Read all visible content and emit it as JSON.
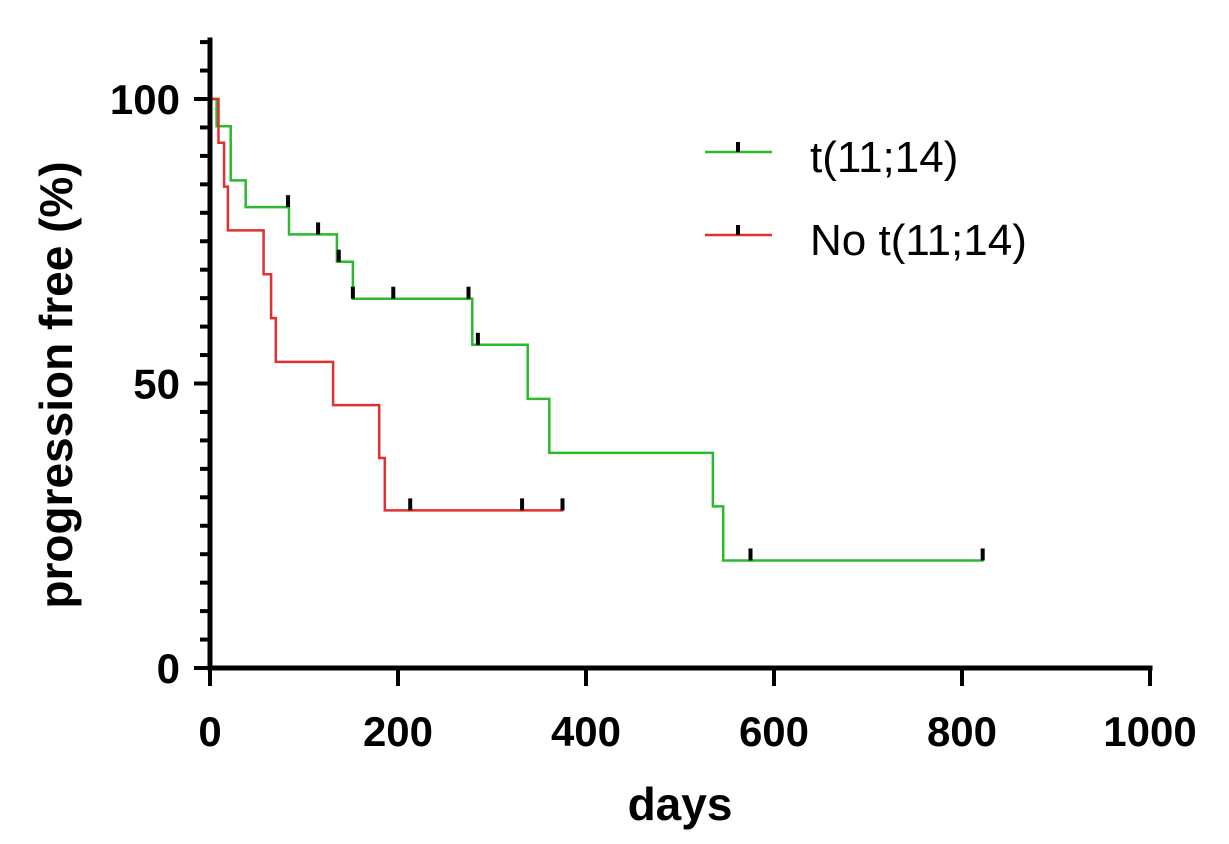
{
  "chart_data": {
    "type": "line",
    "subtype": "kaplan-meier step",
    "title": "",
    "xlabel": "days",
    "ylabel": "progression free (%)",
    "xlim": [
      0,
      1000
    ],
    "ylim": [
      0,
      110
    ],
    "x_ticks": [
      0,
      200,
      400,
      600,
      800,
      1000
    ],
    "x_tick_labels": [
      "0",
      "200",
      "400",
      "600",
      "800",
      "1000"
    ],
    "y_ticks": [
      0,
      50,
      100
    ],
    "y_tick_labels": [
      "0",
      "50",
      "100"
    ],
    "y_minor_step": 5,
    "legend_position": "top-right",
    "series": [
      {
        "name": "t(11;14)",
        "color": "#2db82d",
        "steps": [
          [
            0,
            100
          ],
          [
            7,
            100
          ],
          [
            7,
            95.2
          ],
          [
            22,
            95.2
          ],
          [
            22,
            85.7
          ],
          [
            38,
            85.7
          ],
          [
            38,
            81
          ],
          [
            84,
            81
          ],
          [
            84,
            76.2
          ],
          [
            135,
            76.2
          ],
          [
            135,
            71.4
          ],
          [
            152,
            71.4
          ],
          [
            152,
            64.9
          ],
          [
            279,
            64.9
          ],
          [
            279,
            56.8
          ],
          [
            338,
            56.8
          ],
          [
            338,
            47.3
          ],
          [
            361,
            47.3
          ],
          [
            361,
            37.8
          ],
          [
            535,
            37.8
          ],
          [
            535,
            28.4
          ],
          [
            546,
            28.4
          ],
          [
            546,
            18.9
          ],
          [
            823,
            18.9
          ]
        ],
        "censored": [
          [
            83,
            81
          ],
          [
            115,
            76.2
          ],
          [
            137,
            71.4
          ],
          [
            152,
            64.9
          ],
          [
            195,
            64.9
          ],
          [
            275,
            64.9
          ],
          [
            285,
            56.8
          ],
          [
            575,
            18.9
          ],
          [
            822,
            18.9
          ]
        ]
      },
      {
        "name": "No t(11;14)",
        "color": "#e03030",
        "steps": [
          [
            0,
            100
          ],
          [
            9,
            100
          ],
          [
            9,
            92.3
          ],
          [
            15,
            92.3
          ],
          [
            15,
            84.6
          ],
          [
            19,
            84.6
          ],
          [
            19,
            76.9
          ],
          [
            57,
            76.9
          ],
          [
            57,
            69.2
          ],
          [
            65,
            69.2
          ],
          [
            65,
            61.5
          ],
          [
            70,
            61.5
          ],
          [
            70,
            53.8
          ],
          [
            131,
            53.8
          ],
          [
            131,
            46.2
          ],
          [
            180,
            46.2
          ],
          [
            180,
            36.9
          ],
          [
            186,
            36.9
          ],
          [
            186,
            27.7
          ],
          [
            376,
            27.7
          ]
        ],
        "censored": [
          [
            213,
            27.7
          ],
          [
            332,
            27.7
          ],
          [
            375,
            27.7
          ]
        ]
      }
    ]
  }
}
